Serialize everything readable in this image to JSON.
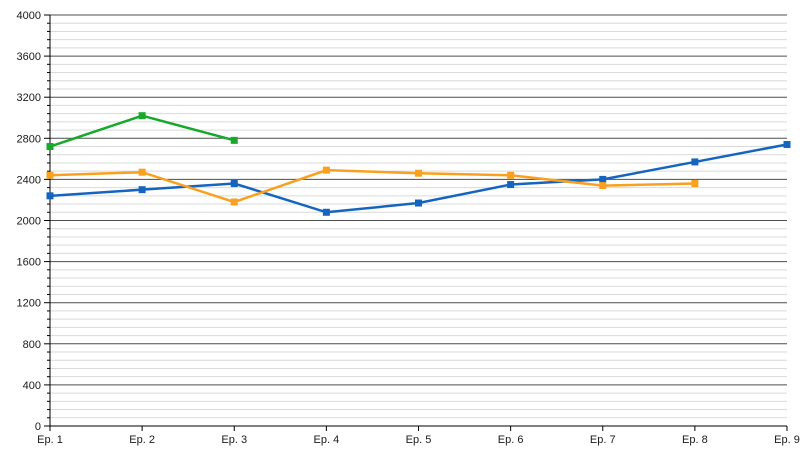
{
  "chart": {
    "background": "#ffffff",
    "axis_color": "#000000",
    "major_grid_color": "#4d4d4d",
    "minor_grid_color": "#d9d9d9",
    "label_color": "#1a1a1a"
  },
  "chart_data": {
    "type": "line",
    "title": "",
    "xlabel": "",
    "ylabel": "",
    "legend": "none",
    "grid": "on",
    "marker": "square",
    "ylim": [
      0,
      4000
    ],
    "y_major_step": 400,
    "y_minor_step": 80,
    "y_tick_labels": [
      "0",
      "400",
      "800",
      "1200",
      "1600",
      "2000",
      "2400",
      "2800",
      "3200",
      "3600",
      "4000"
    ],
    "categories": [
      "Ep. 1",
      "Ep. 2",
      "Ep. 3",
      "Ep. 4",
      "Ep. 5",
      "Ep. 6",
      "Ep. 7",
      "Ep. 8",
      "Ep. 9"
    ],
    "series": [
      {
        "name": "blue",
        "color": "#1565c0",
        "values": [
          2240,
          2300,
          2360,
          2080,
          2170,
          2350,
          2400,
          2570,
          2740
        ]
      },
      {
        "name": "orange",
        "color": "#f9a11e",
        "values": [
          2440,
          2470,
          2180,
          2490,
          2460,
          2440,
          2340,
          2360
        ]
      },
      {
        "name": "green",
        "color": "#18a92c",
        "values": [
          2720,
          3020,
          2780
        ]
      }
    ]
  }
}
